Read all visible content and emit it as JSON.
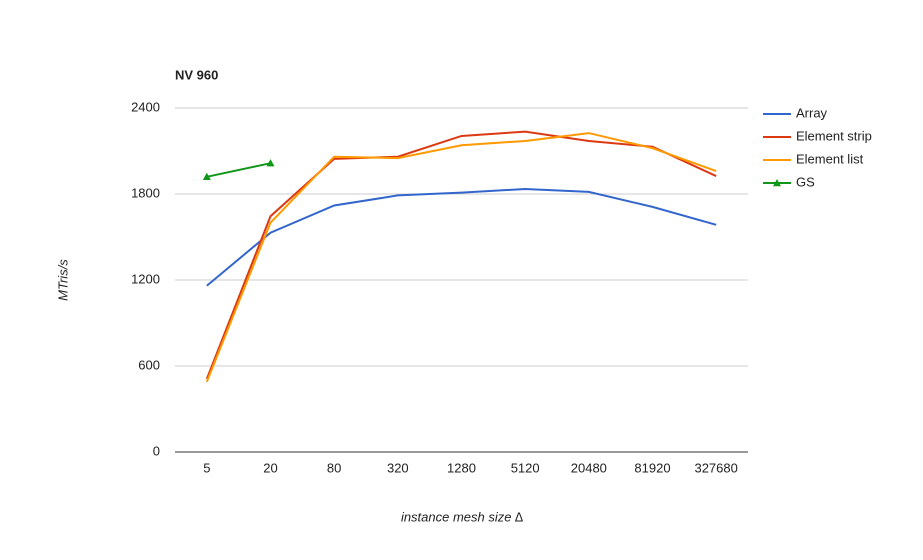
{
  "chart_data": {
    "type": "line",
    "title": "NV 960",
    "x_label": "instance mesh size ∆",
    "y_label": "MTris/s",
    "categories": [
      "5",
      "20",
      "80",
      "320",
      "1280",
      "5120",
      "20480",
      "81920",
      "327680"
    ],
    "series": [
      {
        "name": "Array",
        "color": "#3366cc",
        "values": [
          1160,
          1530,
          1720,
          1790,
          1810,
          1835,
          1815,
          1710,
          1585
        ]
      },
      {
        "name": "Element strip",
        "color": "#dc3912",
        "values": [
          510,
          1645,
          2045,
          2060,
          2205,
          2235,
          2170,
          2130,
          1925
        ]
      },
      {
        "name": "Element list",
        "color": "#ff9900",
        "values": [
          490,
          1600,
          2060,
          2050,
          2140,
          2170,
          2225,
          2120,
          1960
        ]
      },
      {
        "name": "GS",
        "color": "#109618",
        "marker": "triangle",
        "values": [
          1920,
          2015,
          null,
          null,
          null,
          null,
          null,
          null,
          null
        ]
      }
    ],
    "ylim": [
      0,
      2400
    ],
    "yticks": [
      0,
      600,
      1200,
      1800,
      2400
    ],
    "grid": true,
    "legend": "right"
  }
}
